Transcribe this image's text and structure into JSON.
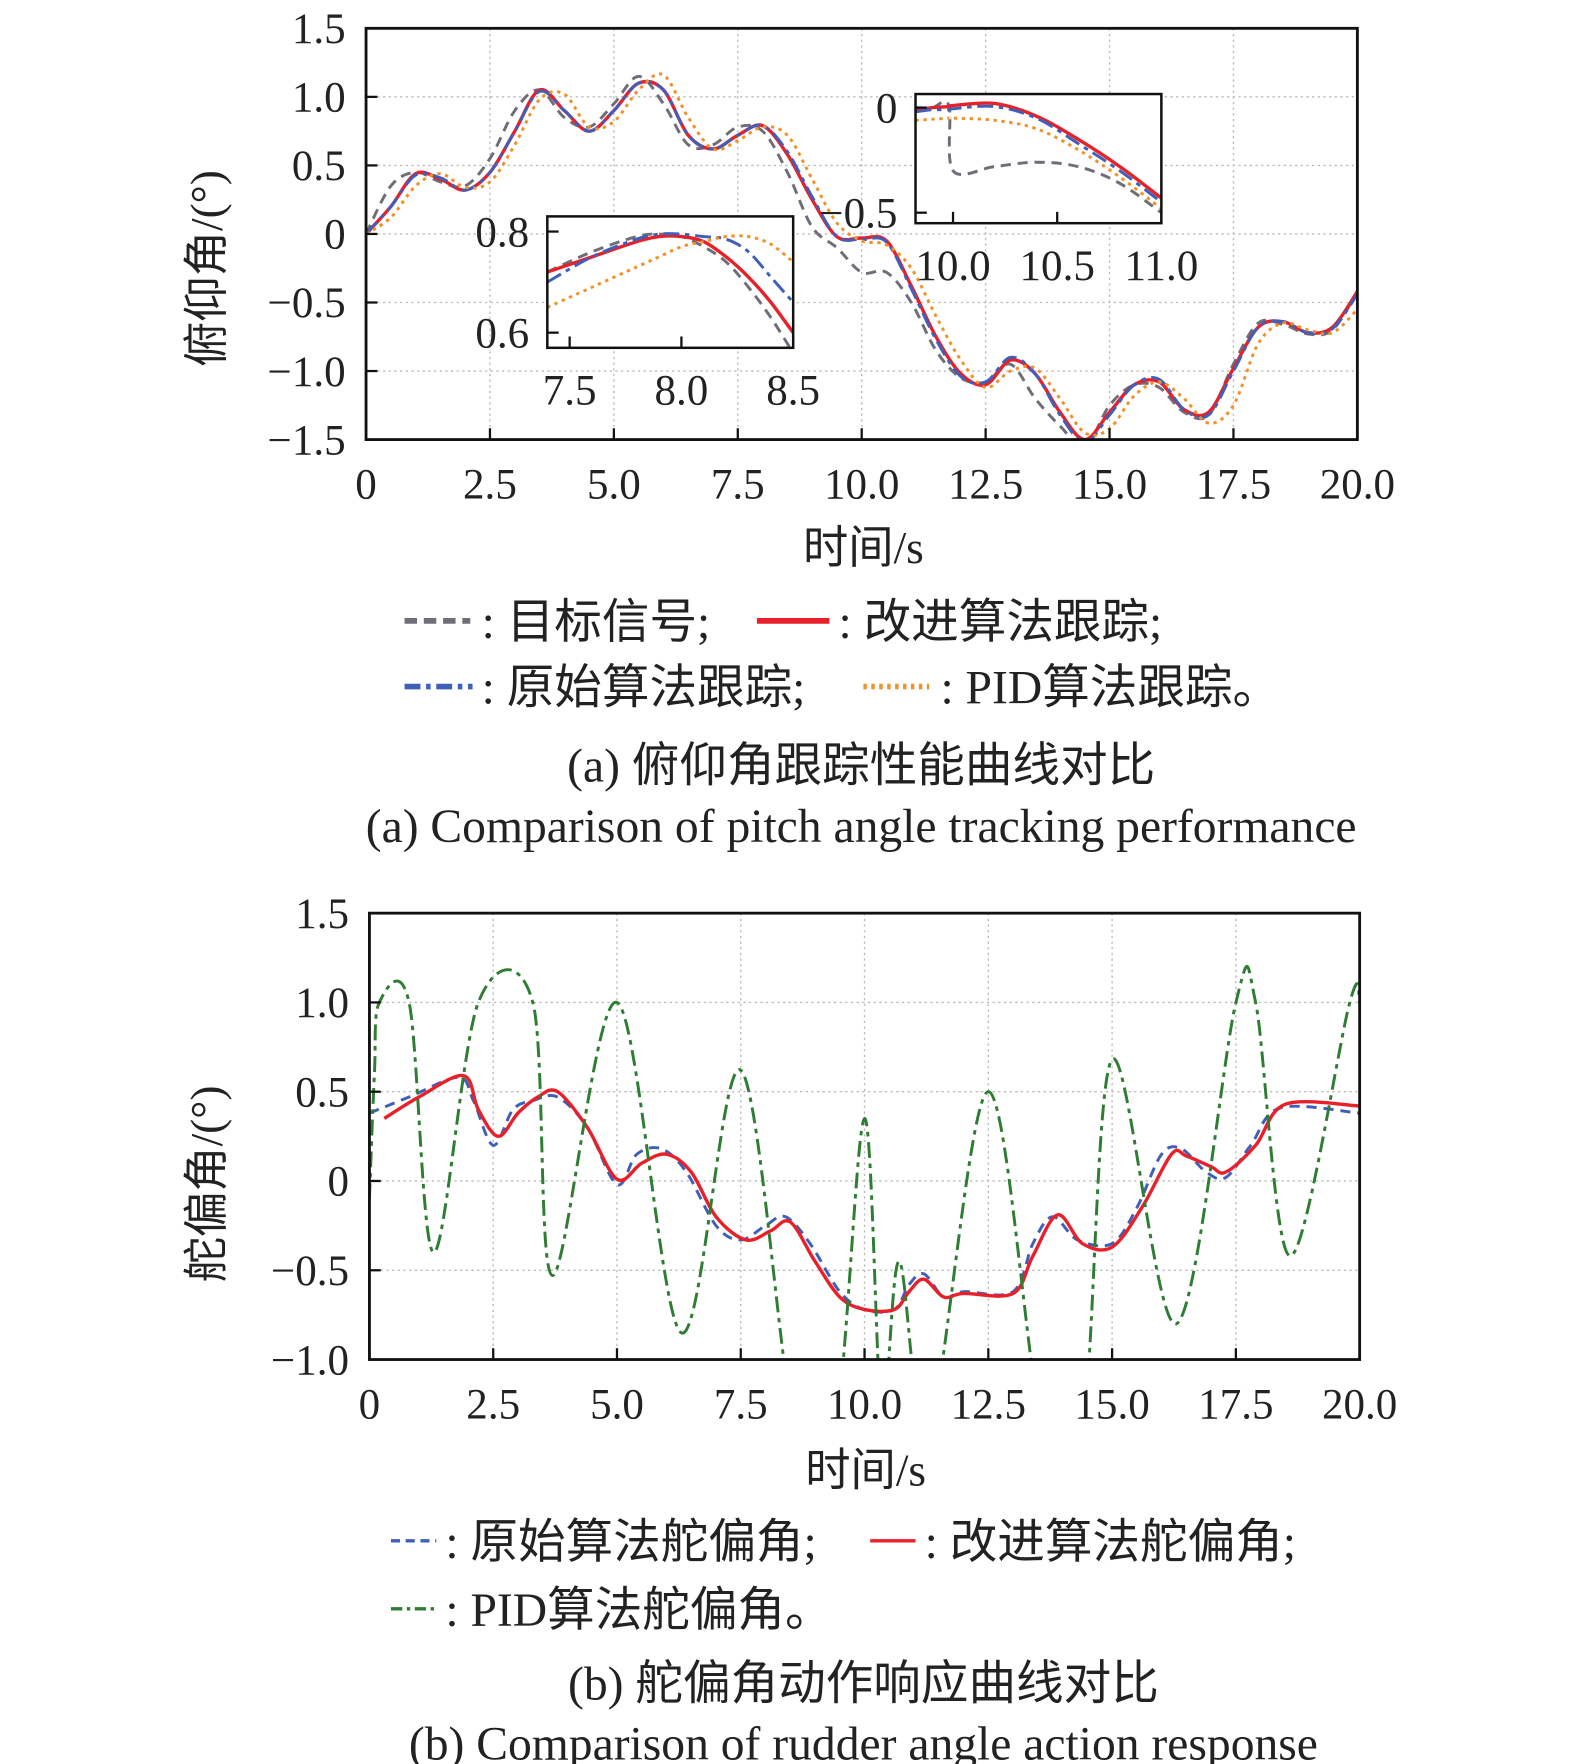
{
  "chart_data": [
    {
      "type": "line",
      "title": "",
      "caption_zh": "(a) 俯仰角跟踪性能曲线对比",
      "caption_en": "(a) Comparison of pitch angle tracking performance",
      "xlabel": "时间/s",
      "ylabel": "俯仰角/(°)",
      "xlim": [
        0,
        20
      ],
      "ylim": [
        -1.5,
        1.5
      ],
      "xticks": [
        "0",
        "2.5",
        "5.0",
        "7.5",
        "10.0",
        "12.5",
        "15.0",
        "17.5",
        "20.0"
      ],
      "yticks": [
        "1.5",
        "1.0",
        "0.5",
        "0",
        "−0.5",
        "−1.0",
        "−1.5"
      ],
      "grid": true,
      "legend_position": "bottom",
      "legend_items": [
        ": 目标信号;",
        ": 改进算法跟踪;",
        ": 原始算法跟踪;",
        ": PID算法跟踪。"
      ],
      "x": [
        0,
        0.5,
        1,
        1.5,
        2,
        2.5,
        3,
        3.5,
        4,
        4.5,
        5,
        5.5,
        6,
        6.5,
        7,
        7.5,
        8,
        8.5,
        9,
        9.5,
        10,
        10.5,
        11,
        11.5,
        12,
        12.5,
        13,
        13.5,
        14,
        14.5,
        15,
        15.5,
        16,
        16.5,
        17,
        17.5,
        18,
        18.5,
        19,
        19.5,
        20
      ],
      "series": [
        {
          "name": "目标信号",
          "color": "#6e6e78",
          "dash": "dashed",
          "values": [
            0,
            0.35,
            0.45,
            0.38,
            0.35,
            0.55,
            0.9,
            1.05,
            0.85,
            0.78,
            0.95,
            1.15,
            0.95,
            0.65,
            0.65,
            0.78,
            0.75,
            0.45,
            0.05,
            -0.1,
            -0.28,
            -0.28,
            -0.5,
            -0.85,
            -1.05,
            -1.08,
            -0.95,
            -1.2,
            -1.4,
            -1.55,
            -1.25,
            -1.1,
            -1.12,
            -1.3,
            -1.32,
            -0.95,
            -0.65,
            -0.66,
            -0.73,
            -0.7,
            -0.42
          ]
        },
        {
          "name": "改进算法跟踪",
          "color": "#e8202a",
          "dash": "solid",
          "values": [
            0,
            0.2,
            0.44,
            0.4,
            0.32,
            0.45,
            0.75,
            1.05,
            0.9,
            0.75,
            0.9,
            1.1,
            1.05,
            0.72,
            0.62,
            0.72,
            0.79,
            0.58,
            0.25,
            -0.02,
            -0.03,
            -0.05,
            -0.38,
            -0.75,
            -1.02,
            -1.1,
            -0.92,
            -1.02,
            -1.3,
            -1.5,
            -1.3,
            -1.1,
            -1.08,
            -1.28,
            -1.3,
            -0.98,
            -0.68,
            -0.64,
            -0.72,
            -0.68,
            -0.42
          ]
        },
        {
          "name": "原始算法跟踪",
          "color": "#3f5fb8",
          "dash": "dashdot",
          "values": [
            0,
            0.2,
            0.43,
            0.41,
            0.32,
            0.45,
            0.75,
            1.04,
            0.9,
            0.75,
            0.9,
            1.1,
            1.05,
            0.72,
            0.62,
            0.72,
            0.79,
            0.6,
            0.27,
            -0.02,
            -0.04,
            -0.06,
            -0.4,
            -0.77,
            -1.04,
            -1.08,
            -0.9,
            -1.02,
            -1.32,
            -1.52,
            -1.32,
            -1.1,
            -1.06,
            -1.28,
            -1.32,
            -1.0,
            -0.68,
            -0.64,
            -0.72,
            -0.69,
            -0.44
          ]
        },
        {
          "name": "PID算法跟踪",
          "color": "#f0922a",
          "dash": "dotted",
          "values": [
            0,
            0.12,
            0.35,
            0.44,
            0.34,
            0.38,
            0.65,
            0.98,
            1.02,
            0.78,
            0.82,
            1.05,
            1.16,
            0.85,
            0.62,
            0.68,
            0.78,
            0.72,
            0.4,
            0.08,
            -0.05,
            -0.08,
            -0.25,
            -0.6,
            -0.92,
            -1.12,
            -1.0,
            -0.98,
            -1.2,
            -1.45,
            -1.42,
            -1.18,
            -1.08,
            -1.2,
            -1.38,
            -1.25,
            -0.8,
            -0.65,
            -0.7,
            -0.72,
            -0.55
          ]
        }
      ],
      "insets": [
        {
          "xlim": [
            7.4,
            8.5
          ],
          "ylim": [
            0.57,
            0.83
          ],
          "xticks": [
            "7.5",
            "8.0",
            "8.5"
          ],
          "yticks": [
            "0.8",
            "0.6"
          ],
          "x": [
            7.4,
            7.6,
            7.8,
            7.9,
            8.0,
            8.1,
            8.2,
            8.3,
            8.4,
            8.5
          ],
          "series": [
            [
              0.72,
              0.76,
              0.79,
              0.795,
              0.79,
              0.77,
              0.74,
              0.69,
              0.63,
              0.56
            ],
            [
              0.72,
              0.75,
              0.78,
              0.79,
              0.79,
              0.78,
              0.75,
              0.71,
              0.66,
              0.6
            ],
            [
              0.7,
              0.75,
              0.785,
              0.795,
              0.795,
              0.79,
              0.785,
              0.76,
              0.71,
              0.66
            ],
            [
              0.65,
              0.69,
              0.73,
              0.75,
              0.77,
              0.78,
              0.79,
              0.79,
              0.775,
              0.74
            ]
          ]
        },
        {
          "xlim": [
            9.82,
            11.0
          ],
          "ylim": [
            -0.55,
            0.065
          ],
          "xticks": [
            "10.0",
            "10.5",
            "11.0"
          ],
          "yticks": [
            "0",
            "−0.5"
          ],
          "x": [
            9.82,
            9.9,
            9.98,
            10.0,
            10.2,
            10.4,
            10.6,
            10.8,
            11.0
          ],
          "series": [
            [
              0,
              0,
              0.01,
              -0.3,
              -0.28,
              -0.26,
              -0.28,
              -0.36,
              -0.5
            ],
            [
              -0.01,
              0,
              0.005,
              0.01,
              0.02,
              -0.04,
              -0.15,
              -0.28,
              -0.43
            ],
            [
              -0.02,
              -0.01,
              -0.01,
              -0.005,
              0.005,
              -0.05,
              -0.17,
              -0.3,
              -0.45
            ],
            [
              -0.06,
              -0.055,
              -0.05,
              -0.05,
              -0.06,
              -0.1,
              -0.2,
              -0.33,
              -0.48
            ]
          ]
        }
      ]
    },
    {
      "type": "line",
      "title": "",
      "caption_zh": "(b) 舵偏角动作响应曲线对比",
      "caption_en": "(b) Comparison of rudder angle action response",
      "xlabel": "时间/s",
      "ylabel": "舵偏角/(°)",
      "xlim": [
        0,
        20
      ],
      "ylim": [
        -1.0,
        1.5
      ],
      "xticks": [
        "0",
        "2.5",
        "5.0",
        "7.5",
        "10.0",
        "12.5",
        "15.0",
        "17.5",
        "20.0"
      ],
      "yticks": [
        "1.5",
        "1.0",
        "0.5",
        "0",
        "−0.5",
        "−1.0"
      ],
      "grid": true,
      "legend_position": "bottom",
      "legend_items": [
        ": 原始算法舵偏角;",
        ": 改进算法舵偏角;",
        ": PID算法舵偏角。"
      ],
      "series": [
        {
          "name": "原始算法舵偏角",
          "color": "#3f5fb8",
          "dash": "dashed",
          "x": [
            0,
            0.8,
            1.8,
            2.1,
            2.5,
            2.9,
            3.3,
            3.8,
            4.4,
            5.0,
            5.4,
            5.9,
            6.4,
            7.0,
            7.5,
            8.0,
            8.4,
            8.9,
            9.5,
            10.0,
            10.6,
            10.9,
            11.2,
            11.6,
            12.0,
            13.0,
            13.4,
            13.8,
            14.3,
            15.0,
            15.5,
            16.0,
            16.4,
            16.9,
            17.3,
            17.8,
            18.4,
            20.0
          ],
          "values": [
            0.38,
            0.47,
            0.58,
            0.45,
            0.2,
            0.4,
            0.45,
            0.47,
            0.3,
            -0.02,
            0.15,
            0.18,
            0.05,
            -0.25,
            -0.33,
            -0.25,
            -0.2,
            -0.35,
            -0.62,
            -0.72,
            -0.72,
            -0.58,
            -0.52,
            -0.65,
            -0.62,
            -0.62,
            -0.35,
            -0.2,
            -0.33,
            -0.35,
            -0.15,
            0.15,
            0.18,
            0.05,
            0.02,
            0.2,
            0.41,
            0.38
          ]
        },
        {
          "name": "改进算法舵偏角",
          "color": "#e8202a",
          "dash": "solid",
          "x": [
            0.3,
            1.0,
            1.9,
            2.2,
            2.6,
            3.0,
            3.4,
            3.8,
            4.4,
            5.0,
            5.5,
            6.0,
            6.5,
            7.0,
            7.6,
            8.1,
            8.5,
            9.0,
            9.5,
            10.0,
            10.6,
            10.9,
            11.2,
            11.6,
            12.0,
            13.0,
            13.4,
            13.9,
            14.4,
            15.0,
            15.6,
            16.2,
            16.5,
            17.0,
            17.3,
            17.9,
            18.5,
            20.0
          ],
          "values": [
            0.35,
            0.47,
            0.59,
            0.4,
            0.25,
            0.38,
            0.47,
            0.5,
            0.3,
            0.01,
            0.1,
            0.15,
            0.05,
            -0.2,
            -0.33,
            -0.28,
            -0.23,
            -0.45,
            -0.65,
            -0.72,
            -0.72,
            -0.62,
            -0.55,
            -0.65,
            -0.63,
            -0.63,
            -0.42,
            -0.19,
            -0.35,
            -0.37,
            -0.15,
            0.15,
            0.14,
            0.08,
            0.05,
            0.2,
            0.43,
            0.42
          ]
        },
        {
          "name": "PID算法舵偏角",
          "color": "#2e7d32",
          "dash": "dashdot",
          "x": [
            0,
            0.1,
            0.2,
            0.8,
            1.3,
            2.2,
            3.3,
            3.7,
            5.0,
            6.3,
            7.5,
            8.6,
            9.4,
            10.0,
            10.35,
            10.7,
            11.3,
            12.5,
            13.6,
            14.4,
            15.0,
            16.3,
            17.5,
            17.9,
            18.6,
            19.8,
            20.0
          ],
          "values": [
            -0.1,
            0.6,
            1.0,
            1.0,
            -0.4,
            1.0,
            1.0,
            -0.53,
            1.0,
            -0.85,
            0.62,
            -1.4,
            -1.4,
            0.35,
            -1.3,
            -0.45,
            -1.4,
            0.5,
            -1.4,
            -1.4,
            0.68,
            -0.8,
            1.0,
            1.0,
            -0.42,
            1.0,
            1.0
          ]
        }
      ]
    }
  ]
}
